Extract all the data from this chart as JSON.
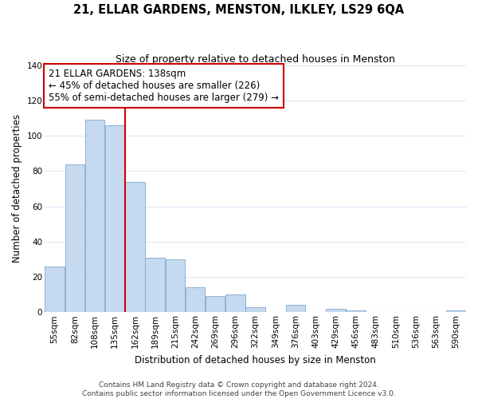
{
  "title": "21, ELLAR GARDENS, MENSTON, ILKLEY, LS29 6QA",
  "subtitle": "Size of property relative to detached houses in Menston",
  "xlabel": "Distribution of detached houses by size in Menston",
  "ylabel": "Number of detached properties",
  "categories": [
    "55sqm",
    "82sqm",
    "108sqm",
    "135sqm",
    "162sqm",
    "189sqm",
    "215sqm",
    "242sqm",
    "269sqm",
    "296sqm",
    "322sqm",
    "349sqm",
    "376sqm",
    "403sqm",
    "429sqm",
    "456sqm",
    "483sqm",
    "510sqm",
    "536sqm",
    "563sqm",
    "590sqm"
  ],
  "values": [
    26,
    84,
    109,
    106,
    74,
    31,
    30,
    14,
    9,
    10,
    3,
    0,
    4,
    0,
    2,
    1,
    0,
    0,
    0,
    0,
    1
  ],
  "bar_color": "#c5d9f0",
  "bar_edge_color": "#7fa8d0",
  "annotation_text": "21 ELLAR GARDENS: 138sqm\n← 45% of detached houses are smaller (226)\n55% of semi-detached houses are larger (279) →",
  "annotation_box_color": "white",
  "annotation_box_edge_color": "#cc0000",
  "vline_x": 3.5,
  "vline_color": "#cc0000",
  "ylim": [
    0,
    140
  ],
  "yticks": [
    0,
    20,
    40,
    60,
    80,
    100,
    120,
    140
  ],
  "footer_line1": "Contains HM Land Registry data © Crown copyright and database right 2024.",
  "footer_line2": "Contains public sector information licensed under the Open Government Licence v3.0.",
  "bg_color": "white",
  "grid_color": "#dce8f5",
  "title_fontsize": 10.5,
  "subtitle_fontsize": 9,
  "axis_label_fontsize": 8.5,
  "tick_fontsize": 7.5,
  "annotation_fontsize": 8.5,
  "footer_fontsize": 6.5
}
